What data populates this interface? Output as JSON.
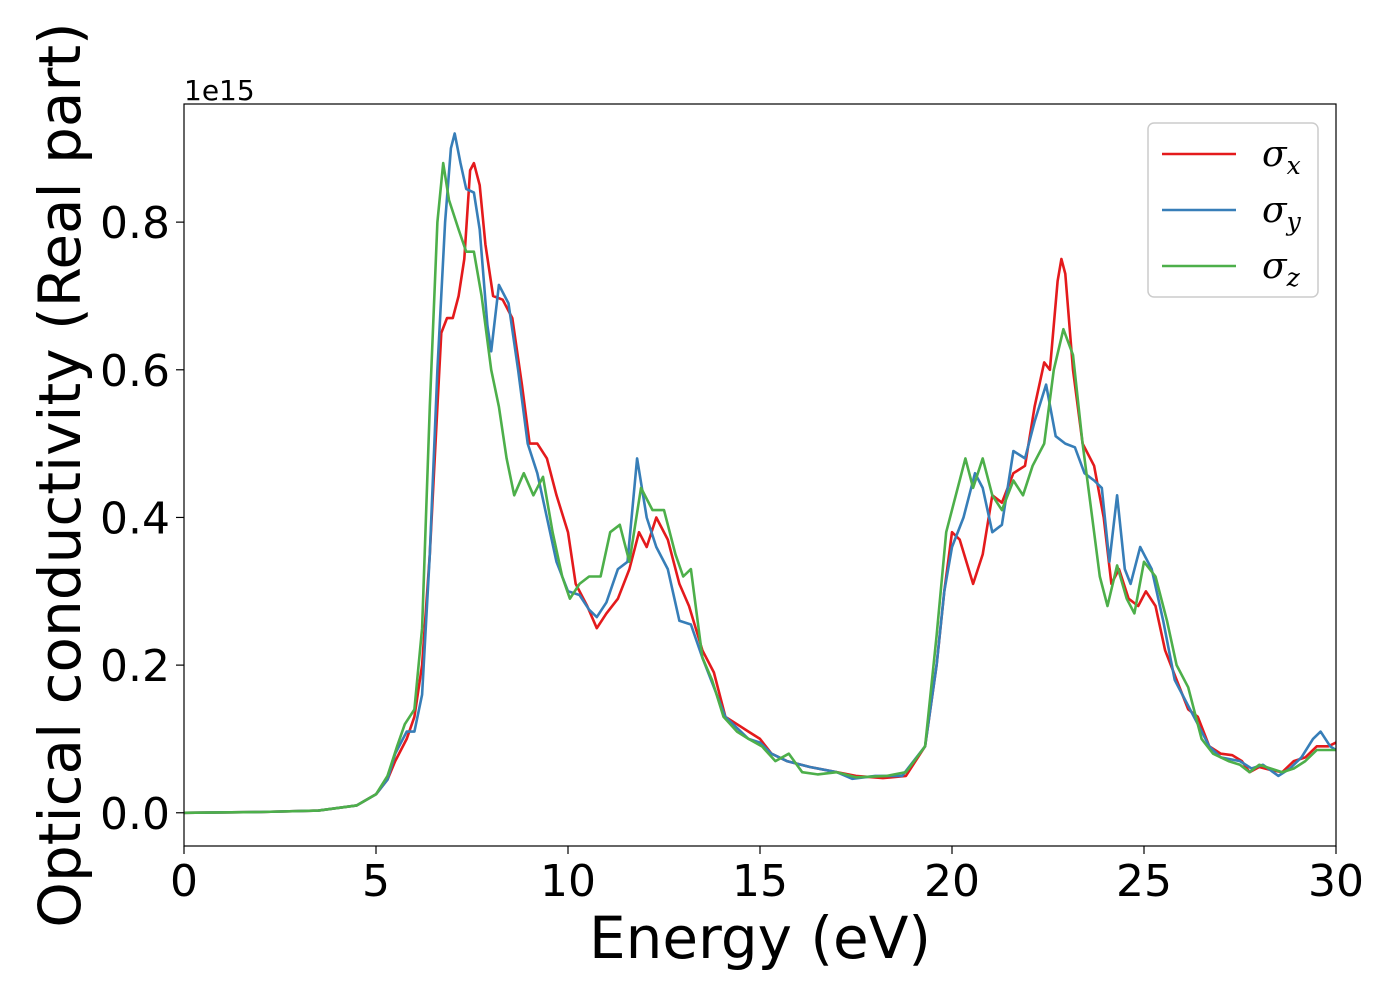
{
  "chart_data": {
    "type": "line",
    "title": "",
    "xlabel": "Energy (eV)",
    "ylabel": "Optical conductivity (Real part)",
    "y_multiplier_label": "1e15",
    "xlim": [
      0,
      30
    ],
    "ylim": [
      -0.045,
      0.96
    ],
    "x_ticks": [
      0,
      5,
      10,
      15,
      20,
      25,
      30
    ],
    "x_tick_labels": [
      "0",
      "5",
      "10",
      "15",
      "20",
      "25",
      "30"
    ],
    "y_ticks": [
      0.0,
      0.2,
      0.4,
      0.6,
      0.8
    ],
    "y_tick_labels": [
      "0.0",
      "0.2",
      "0.4",
      "0.6",
      "0.8"
    ],
    "grid": false,
    "legend_position": "top-right",
    "series": [
      {
        "name": "σx",
        "legend_symbol": "σ",
        "legend_subscript": "x",
        "color": "#e41a1c",
        "points": [
          [
            0,
            0
          ],
          [
            2,
            0.001
          ],
          [
            3.5,
            0.003
          ],
          [
            4.5,
            0.01
          ],
          [
            5,
            0.025
          ],
          [
            5.3,
            0.045
          ],
          [
            5.5,
            0.07
          ],
          [
            5.8,
            0.1
          ],
          [
            6,
            0.13
          ],
          [
            6.2,
            0.2
          ],
          [
            6.4,
            0.35
          ],
          [
            6.6,
            0.55
          ],
          [
            6.7,
            0.65
          ],
          [
            6.85,
            0.67
          ],
          [
            7,
            0.67
          ],
          [
            7.15,
            0.7
          ],
          [
            7.3,
            0.75
          ],
          [
            7.45,
            0.87
          ],
          [
            7.55,
            0.88
          ],
          [
            7.7,
            0.85
          ],
          [
            7.85,
            0.77
          ],
          [
            8.05,
            0.7
          ],
          [
            8.3,
            0.695
          ],
          [
            8.55,
            0.67
          ],
          [
            8.8,
            0.58
          ],
          [
            9,
            0.5
          ],
          [
            9.2,
            0.5
          ],
          [
            9.45,
            0.48
          ],
          [
            9.7,
            0.43
          ],
          [
            10,
            0.38
          ],
          [
            10.2,
            0.31
          ],
          [
            10.5,
            0.28
          ],
          [
            10.75,
            0.25
          ],
          [
            11,
            0.27
          ],
          [
            11.3,
            0.29
          ],
          [
            11.6,
            0.33
          ],
          [
            11.85,
            0.38
          ],
          [
            12.05,
            0.36
          ],
          [
            12.3,
            0.4
          ],
          [
            12.6,
            0.37
          ],
          [
            12.9,
            0.31
          ],
          [
            13.15,
            0.28
          ],
          [
            13.5,
            0.22
          ],
          [
            13.8,
            0.19
          ],
          [
            14.1,
            0.13
          ],
          [
            14.4,
            0.12
          ],
          [
            14.7,
            0.11
          ],
          [
            15,
            0.1
          ],
          [
            15.3,
            0.08
          ],
          [
            15.7,
            0.07
          ],
          [
            16.3,
            0.062
          ],
          [
            17,
            0.055
          ],
          [
            17.5,
            0.05
          ],
          [
            18.2,
            0.047
          ],
          [
            18.8,
            0.05
          ],
          [
            19.3,
            0.09
          ],
          [
            19.6,
            0.2
          ],
          [
            19.8,
            0.3
          ],
          [
            20,
            0.38
          ],
          [
            20.2,
            0.37
          ],
          [
            20.55,
            0.31
          ],
          [
            20.8,
            0.35
          ],
          [
            21.05,
            0.43
          ],
          [
            21.3,
            0.42
          ],
          [
            21.6,
            0.46
          ],
          [
            21.9,
            0.47
          ],
          [
            22.15,
            0.55
          ],
          [
            22.4,
            0.61
          ],
          [
            22.55,
            0.6
          ],
          [
            22.75,
            0.72
          ],
          [
            22.85,
            0.75
          ],
          [
            22.95,
            0.73
          ],
          [
            23.15,
            0.6
          ],
          [
            23.4,
            0.5
          ],
          [
            23.7,
            0.47
          ],
          [
            23.95,
            0.4
          ],
          [
            24.15,
            0.31
          ],
          [
            24.35,
            0.33
          ],
          [
            24.6,
            0.29
          ],
          [
            24.85,
            0.28
          ],
          [
            25.05,
            0.3
          ],
          [
            25.3,
            0.28
          ],
          [
            25.55,
            0.22
          ],
          [
            25.85,
            0.18
          ],
          [
            26.15,
            0.14
          ],
          [
            26.4,
            0.13
          ],
          [
            26.7,
            0.09
          ],
          [
            27,
            0.08
          ],
          [
            27.3,
            0.078
          ],
          [
            27.55,
            0.07
          ],
          [
            27.75,
            0.055
          ],
          [
            28,
            0.062
          ],
          [
            28.3,
            0.058
          ],
          [
            28.6,
            0.055
          ],
          [
            28.9,
            0.07
          ],
          [
            29.2,
            0.075
          ],
          [
            29.5,
            0.09
          ],
          [
            29.8,
            0.09
          ],
          [
            30,
            0.095
          ]
        ]
      },
      {
        "name": "σy",
        "legend_symbol": "σ",
        "legend_subscript": "y",
        "color": "#377eb8",
        "points": [
          [
            0,
            0
          ],
          [
            2,
            0.001
          ],
          [
            3.5,
            0.003
          ],
          [
            4.5,
            0.01
          ],
          [
            5,
            0.025
          ],
          [
            5.3,
            0.045
          ],
          [
            5.5,
            0.08
          ],
          [
            5.8,
            0.11
          ],
          [
            6,
            0.11
          ],
          [
            6.2,
            0.16
          ],
          [
            6.4,
            0.35
          ],
          [
            6.6,
            0.6
          ],
          [
            6.8,
            0.8
          ],
          [
            6.95,
            0.9
          ],
          [
            7.05,
            0.92
          ],
          [
            7.2,
            0.88
          ],
          [
            7.35,
            0.845
          ],
          [
            7.55,
            0.84
          ],
          [
            7.7,
            0.79
          ],
          [
            7.9,
            0.66
          ],
          [
            8,
            0.625
          ],
          [
            8.2,
            0.715
          ],
          [
            8.45,
            0.69
          ],
          [
            8.7,
            0.6
          ],
          [
            8.95,
            0.5
          ],
          [
            9.2,
            0.46
          ],
          [
            9.45,
            0.4
          ],
          [
            9.7,
            0.34
          ],
          [
            10,
            0.3
          ],
          [
            10.3,
            0.295
          ],
          [
            10.55,
            0.275
          ],
          [
            10.75,
            0.265
          ],
          [
            11,
            0.285
          ],
          [
            11.3,
            0.33
          ],
          [
            11.55,
            0.34
          ],
          [
            11.8,
            0.48
          ],
          [
            12.05,
            0.4
          ],
          [
            12.3,
            0.36
          ],
          [
            12.6,
            0.33
          ],
          [
            12.9,
            0.26
          ],
          [
            13.2,
            0.255
          ],
          [
            13.5,
            0.21
          ],
          [
            13.8,
            0.17
          ],
          [
            14.1,
            0.13
          ],
          [
            14.4,
            0.115
          ],
          [
            14.7,
            0.1
          ],
          [
            15,
            0.095
          ],
          [
            15.3,
            0.08
          ],
          [
            15.7,
            0.07
          ],
          [
            16.3,
            0.062
          ],
          [
            17,
            0.055
          ],
          [
            17.4,
            0.046
          ],
          [
            18,
            0.05
          ],
          [
            18.7,
            0.05
          ],
          [
            19.3,
            0.09
          ],
          [
            19.6,
            0.2
          ],
          [
            19.8,
            0.3
          ],
          [
            20,
            0.36
          ],
          [
            20.3,
            0.4
          ],
          [
            20.6,
            0.46
          ],
          [
            20.8,
            0.44
          ],
          [
            21.05,
            0.38
          ],
          [
            21.3,
            0.39
          ],
          [
            21.6,
            0.49
          ],
          [
            21.9,
            0.48
          ],
          [
            22.15,
            0.53
          ],
          [
            22.45,
            0.58
          ],
          [
            22.7,
            0.51
          ],
          [
            22.95,
            0.5
          ],
          [
            23.2,
            0.495
          ],
          [
            23.45,
            0.46
          ],
          [
            23.7,
            0.45
          ],
          [
            23.9,
            0.44
          ],
          [
            24.1,
            0.34
          ],
          [
            24.3,
            0.43
          ],
          [
            24.5,
            0.33
          ],
          [
            24.65,
            0.31
          ],
          [
            24.9,
            0.36
          ],
          [
            25.2,
            0.33
          ],
          [
            25.5,
            0.26
          ],
          [
            25.8,
            0.18
          ],
          [
            26.1,
            0.15
          ],
          [
            26.4,
            0.12
          ],
          [
            26.7,
            0.09
          ],
          [
            27,
            0.075
          ],
          [
            27.5,
            0.07
          ],
          [
            27.8,
            0.06
          ],
          [
            28.1,
            0.065
          ],
          [
            28.5,
            0.05
          ],
          [
            28.8,
            0.06
          ],
          [
            29.1,
            0.075
          ],
          [
            29.4,
            0.1
          ],
          [
            29.6,
            0.11
          ],
          [
            29.85,
            0.09
          ],
          [
            30,
            0.085
          ]
        ]
      },
      {
        "name": "σz",
        "legend_symbol": "σ",
        "legend_subscript": "z",
        "color": "#4daf4a",
        "points": [
          [
            0,
            0
          ],
          [
            2,
            0.001
          ],
          [
            3.5,
            0.003
          ],
          [
            4.5,
            0.01
          ],
          [
            5,
            0.025
          ],
          [
            5.3,
            0.05
          ],
          [
            5.55,
            0.09
          ],
          [
            5.75,
            0.12
          ],
          [
            6,
            0.14
          ],
          [
            6.2,
            0.25
          ],
          [
            6.4,
            0.55
          ],
          [
            6.6,
            0.8
          ],
          [
            6.75,
            0.88
          ],
          [
            6.9,
            0.83
          ],
          [
            7.15,
            0.79
          ],
          [
            7.35,
            0.76
          ],
          [
            7.55,
            0.76
          ],
          [
            7.75,
            0.7
          ],
          [
            8,
            0.6
          ],
          [
            8.2,
            0.55
          ],
          [
            8.4,
            0.48
          ],
          [
            8.6,
            0.43
          ],
          [
            8.85,
            0.46
          ],
          [
            9.1,
            0.43
          ],
          [
            9.35,
            0.455
          ],
          [
            9.6,
            0.38
          ],
          [
            9.85,
            0.32
          ],
          [
            10.05,
            0.29
          ],
          [
            10.3,
            0.31
          ],
          [
            10.55,
            0.32
          ],
          [
            10.85,
            0.32
          ],
          [
            11.1,
            0.38
          ],
          [
            11.35,
            0.39
          ],
          [
            11.6,
            0.34
          ],
          [
            11.9,
            0.44
          ],
          [
            12.2,
            0.41
          ],
          [
            12.5,
            0.41
          ],
          [
            12.8,
            0.35
          ],
          [
            13,
            0.32
          ],
          [
            13.2,
            0.33
          ],
          [
            13.5,
            0.21
          ],
          [
            13.75,
            0.18
          ],
          [
            14.05,
            0.13
          ],
          [
            14.4,
            0.11
          ],
          [
            14.7,
            0.1
          ],
          [
            15.05,
            0.09
          ],
          [
            15.4,
            0.07
          ],
          [
            15.75,
            0.08
          ],
          [
            16.1,
            0.055
          ],
          [
            16.5,
            0.052
          ],
          [
            17,
            0.055
          ],
          [
            17.5,
            0.048
          ],
          [
            18.3,
            0.05
          ],
          [
            18.8,
            0.055
          ],
          [
            19.3,
            0.09
          ],
          [
            19.6,
            0.24
          ],
          [
            19.85,
            0.38
          ],
          [
            20.1,
            0.43
          ],
          [
            20.35,
            0.48
          ],
          [
            20.55,
            0.44
          ],
          [
            20.8,
            0.48
          ],
          [
            21.05,
            0.43
          ],
          [
            21.3,
            0.41
          ],
          [
            21.6,
            0.45
          ],
          [
            21.85,
            0.43
          ],
          [
            22.1,
            0.47
          ],
          [
            22.4,
            0.5
          ],
          [
            22.65,
            0.6
          ],
          [
            22.9,
            0.655
          ],
          [
            23.15,
            0.62
          ],
          [
            23.4,
            0.5
          ],
          [
            23.65,
            0.4
          ],
          [
            23.85,
            0.32
          ],
          [
            24.05,
            0.28
          ],
          [
            24.3,
            0.335
          ],
          [
            24.55,
            0.29
          ],
          [
            24.75,
            0.27
          ],
          [
            25,
            0.34
          ],
          [
            25.3,
            0.32
          ],
          [
            25.6,
            0.26
          ],
          [
            25.85,
            0.2
          ],
          [
            26.15,
            0.17
          ],
          [
            26.5,
            0.1
          ],
          [
            26.8,
            0.08
          ],
          [
            27.2,
            0.07
          ],
          [
            27.5,
            0.065
          ],
          [
            27.75,
            0.055
          ],
          [
            28,
            0.065
          ],
          [
            28.3,
            0.06
          ],
          [
            28.6,
            0.055
          ],
          [
            28.9,
            0.06
          ],
          [
            29.2,
            0.07
          ],
          [
            29.5,
            0.085
          ],
          [
            30,
            0.085
          ]
        ]
      }
    ]
  }
}
